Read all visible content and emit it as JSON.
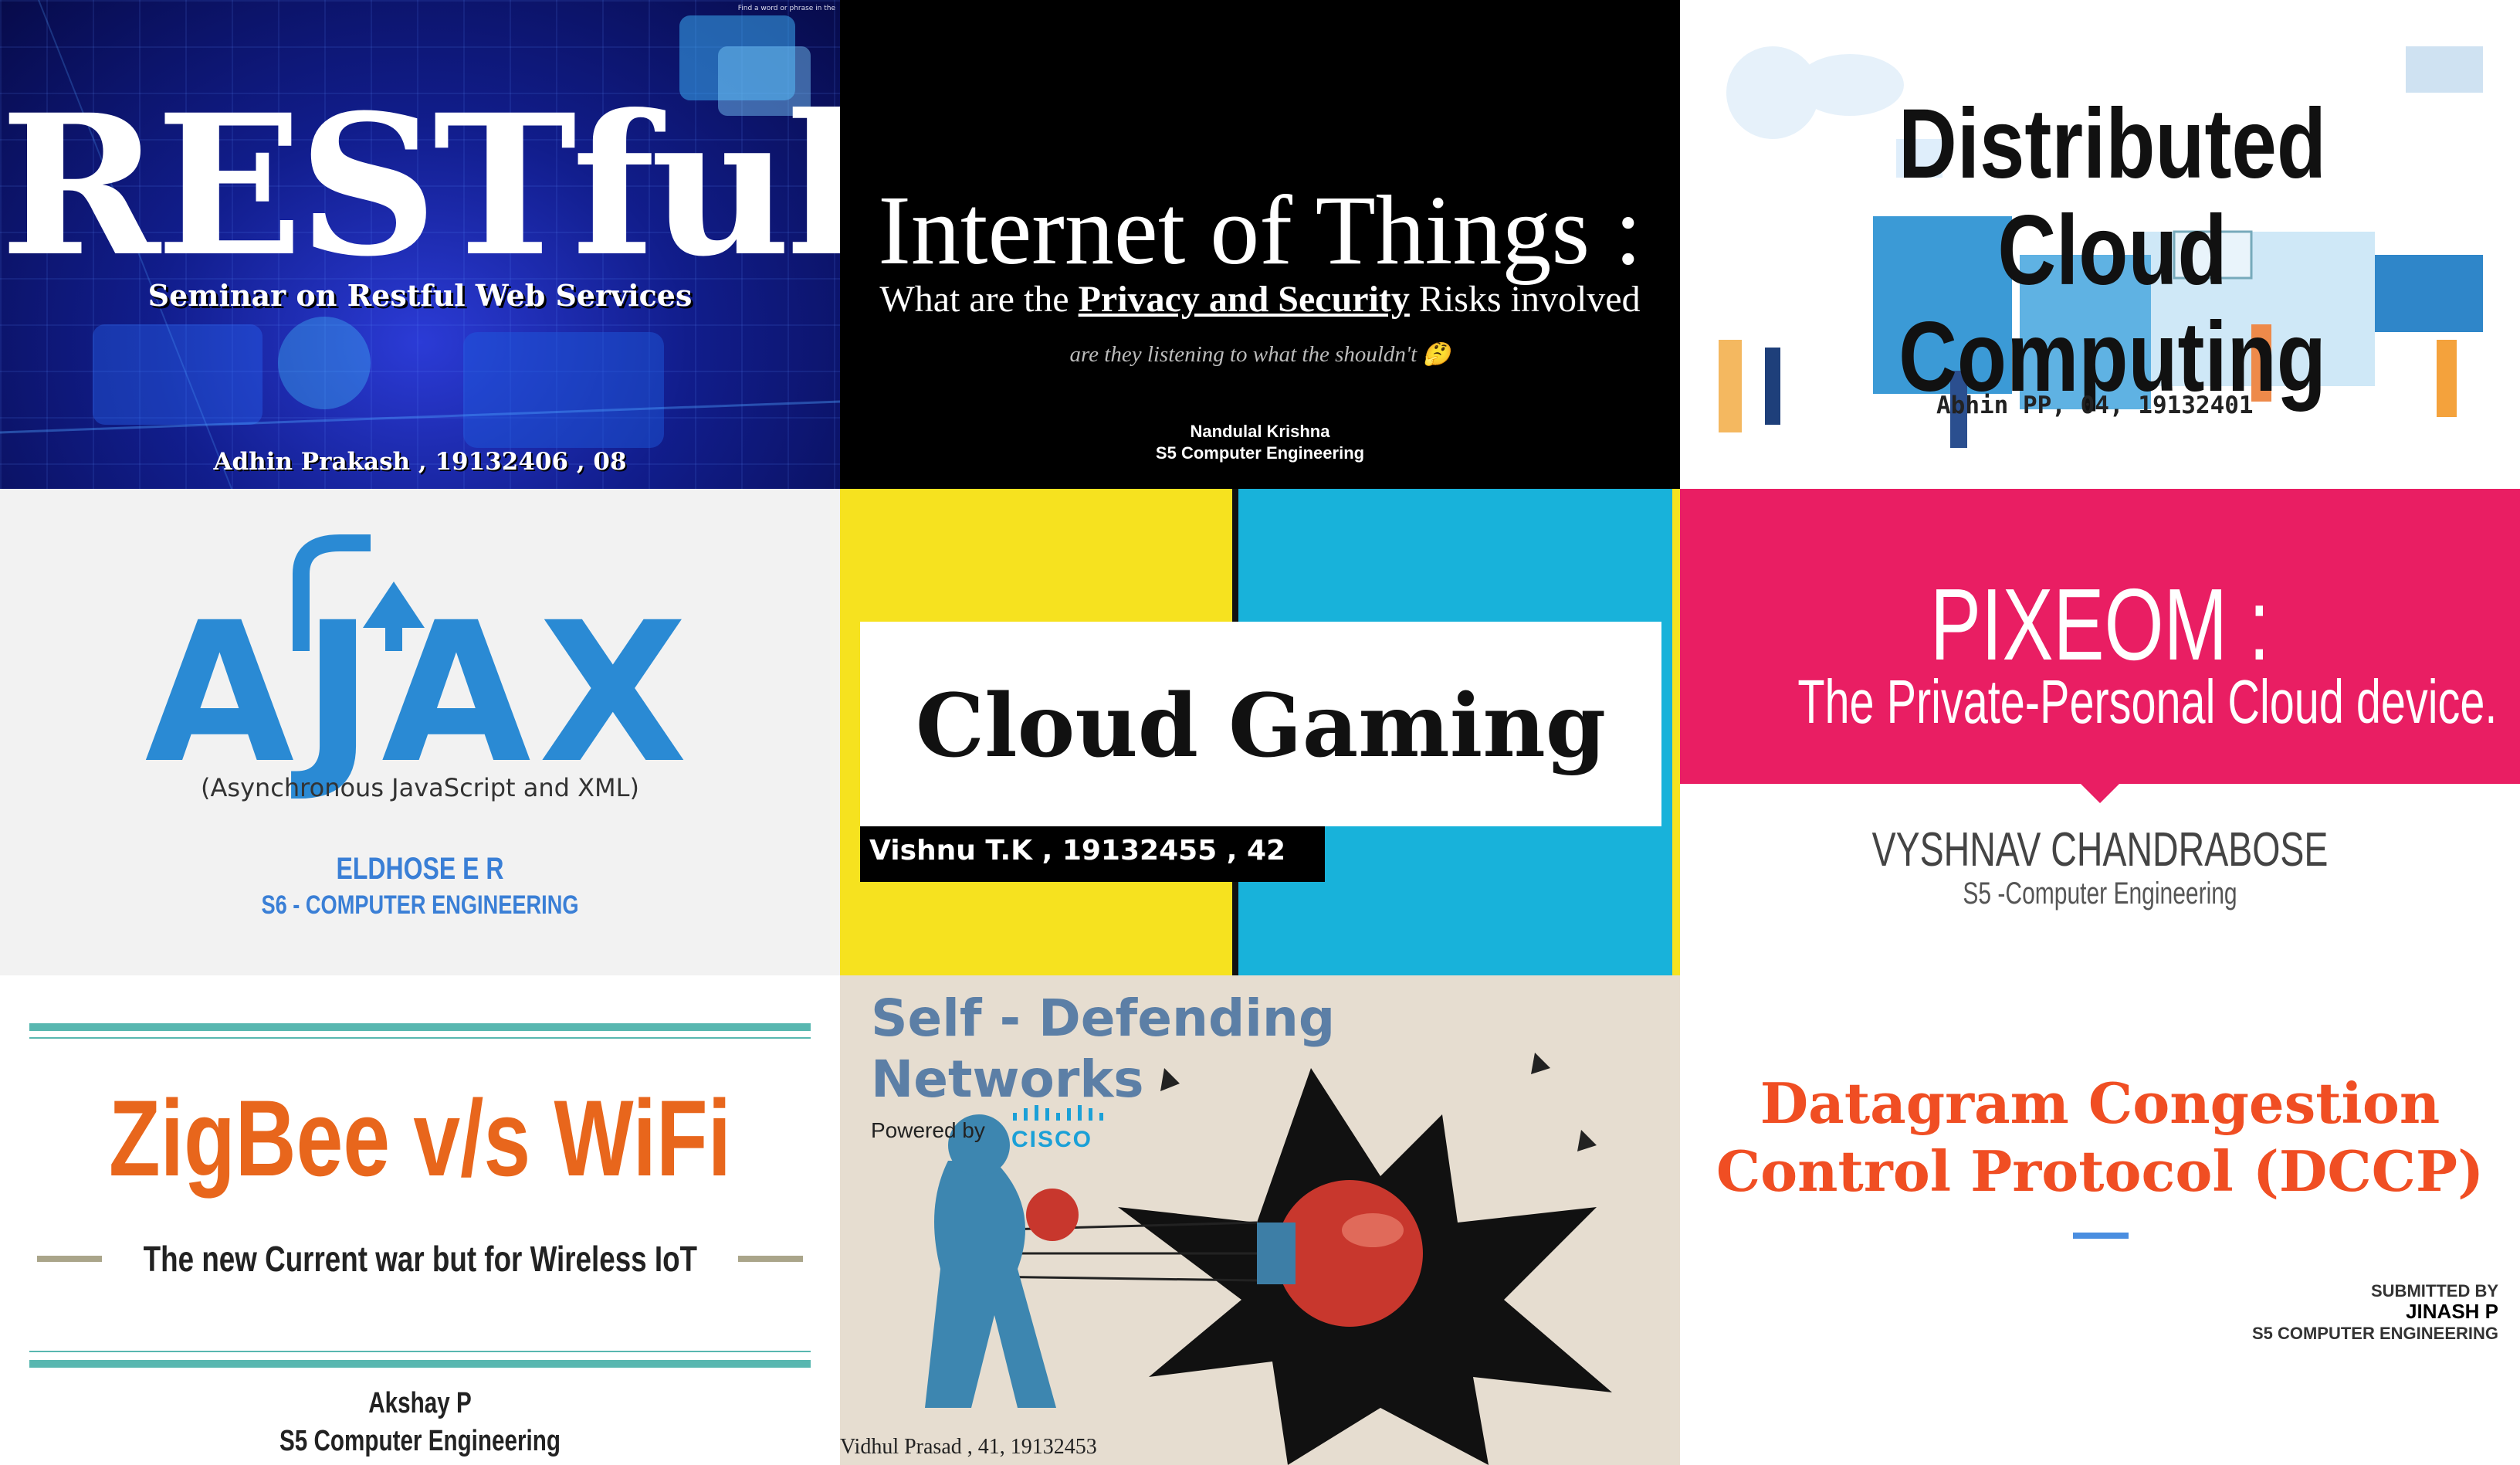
{
  "slides": {
    "restful": {
      "title": "RESTful",
      "subtitle": "Seminar on Restful Web Services",
      "author": "Adhin Prakash , 19132406 , 08",
      "corner_hint": "Find a word or phrase in the"
    },
    "iot": {
      "title": "Internet of Things :",
      "subtitle_pre": "What are the ",
      "subtitle_emph": "Privacy and Security",
      "subtitle_post": " Risks involved",
      "tagline": "are they listening to what the shouldn't 🤔",
      "author": "Nandulal Krishna",
      "dept": "S5 Computer Engineering"
    },
    "distributed": {
      "title_line1": "Distributed Cloud",
      "title_line2": "Computing",
      "author": "Abhin PP, 04, 19132401"
    },
    "ajax": {
      "logo": "AJAX",
      "full_form": "(Asynchronous JavaScript and XML)",
      "author": "ELDHOSE E R",
      "dept": "S6 - COMPUTER ENGINEERING"
    },
    "cloud_gaming": {
      "title": "Cloud Gaming",
      "author": "Vishnu T.K , 19132455 , 42"
    },
    "pixeom": {
      "title": "PIXEOM :",
      "subtitle": "The Private-Personal Cloud device.",
      "author": "VYSHNAV CHANDRABOSE",
      "dept": "S5 -Computer Engineering"
    },
    "zigbee": {
      "title": "ZigBee v/s WiFi",
      "subtitle": "The new Current war but for Wireless IoT",
      "author": "Akshay P",
      "dept": "S5 Computer Engineering"
    },
    "self_defending": {
      "title_line1": "Self - Defending",
      "title_line2": "Networks",
      "powered_by": "Powered by",
      "brand": "CISCO",
      "author": "Vidhul Prasad , 41, 19132453"
    },
    "dccp": {
      "title_line1": "Datagram Congestion",
      "title_line2": "Control Protocol (DCCP)",
      "submitted_by": "SUBMITTED BY",
      "author": "JINASH P",
      "dept": "S5 COMPUTER ENGINEERING"
    }
  },
  "colors": {
    "restful_bg": "#111d8c",
    "ajax_blue": "#2a8ad4",
    "cloud_yellow": "#f6e21f",
    "cloud_cyan": "#18b2da",
    "pixeom_pink": "#e91e63",
    "zigbee_orange": "#e8661c",
    "zigbee_teal": "#58b7b0",
    "dccp_red": "#f04e23"
  },
  "icons": [
    "boxing-glove-icon",
    "cisco-logo-icon",
    "cloud-people-illustration",
    "circuit-icon"
  ]
}
